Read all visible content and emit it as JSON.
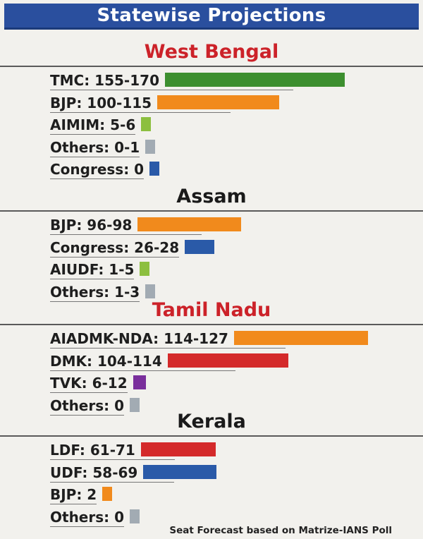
{
  "header": {
    "title": "Statewise Projections"
  },
  "colors": {
    "TMC": "#3d8f2f",
    "BJP": "#f18a1c",
    "AIMIM": "#8cbf3f",
    "AIUDF": "#8cbf3f",
    "Others": "#a2abb3",
    "Congress": "#2a5aa8",
    "UDF": "#2a5aa8",
    "AIADMK-NDA": "#f18a1c",
    "DMK": "#d42a2a",
    "LDF": "#d42a2a",
    "TVK": "#7a2f9c"
  },
  "chart_data": [
    {
      "type": "bar",
      "title": "West Bengal",
      "title_color": "#cc2229",
      "categories": [
        "TMC: 155-170",
        "BJP: 100-115",
        "AIMIM: 5-6",
        "Others: 0-1",
        "Congress: 0"
      ],
      "values": [
        170,
        115,
        6,
        1,
        0
      ]
    },
    {
      "type": "bar",
      "title": "Assam",
      "title_color": "#1a1a1a",
      "categories": [
        "BJP: 96-98",
        "Congress: 26-28",
        "AIUDF: 1-5",
        "Others: 1-3"
      ],
      "values": [
        98,
        28,
        5,
        3
      ]
    },
    {
      "type": "bar",
      "title": "Tamil Nadu",
      "title_color": "#cc2229",
      "categories": [
        "AIADMK-NDA: 114-127",
        "DMK: 104-114",
        "TVK: 6-12",
        "Others: 0"
      ],
      "values": [
        127,
        114,
        12,
        0
      ]
    },
    {
      "type": "bar",
      "title": "Kerala",
      "title_color": "#1a1a1a",
      "categories": [
        "LDF: 61-71",
        "UDF: 58-69",
        "BJP: 2",
        "Others: 0"
      ],
      "values": [
        71,
        69,
        2,
        0
      ]
    }
  ],
  "footer": {
    "source": "Seat Forecast based on Matrize-IANS Poll"
  }
}
